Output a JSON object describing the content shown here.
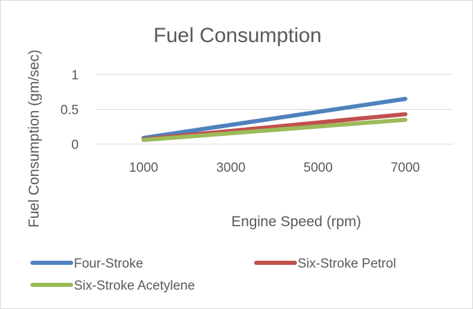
{
  "chart_data": {
    "type": "line",
    "title": "Fuel Consumption",
    "xlabel": "Engine Speed (rpm)",
    "ylabel": "Fuel Consumption (gm/sec)",
    "x": [
      1000,
      7000
    ],
    "xticks": [
      "1000",
      "3000",
      "5000",
      "7000"
    ],
    "ylim": [
      0,
      1
    ],
    "yticks": [
      "0",
      "0.5",
      "1"
    ],
    "grid": true,
    "legend_position": "bottom",
    "series": [
      {
        "name": "Four-Stroke",
        "color": "#4f81bd",
        "values": [
          0.09,
          0.65
        ]
      },
      {
        "name": "Six-Stroke Petrol",
        "color": "#c0504d",
        "values": [
          0.07,
          0.43
        ]
      },
      {
        "name": "Six-Stroke Acetylene",
        "color": "#9bbb59",
        "values": [
          0.06,
          0.35
        ]
      }
    ]
  }
}
